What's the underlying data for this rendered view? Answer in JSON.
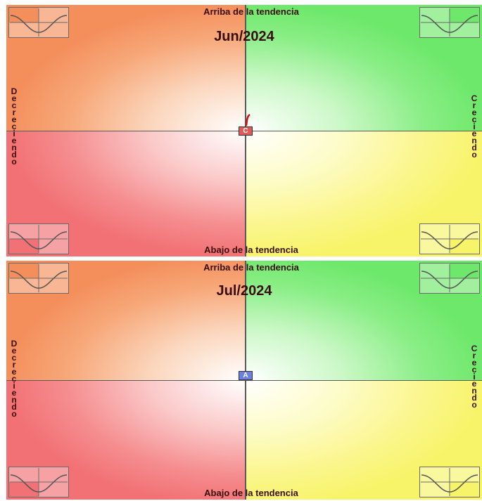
{
  "chart_data": [
    {
      "type": "scatter",
      "title": "Jun/2024",
      "labels": {
        "top": "Arriba de la tendencia",
        "bottom": "Abajo de la tendencia",
        "left": "Decreciendo",
        "right": "Creciendo"
      },
      "points": [
        {
          "label": "C",
          "x": 0,
          "y": 0,
          "color": "#e05a5a"
        }
      ],
      "quadrant_colors": {
        "top_left": "#f48f5c",
        "top_right": "#6ee86b",
        "bottom_left": "#f27174",
        "bottom_right": "#f8f46a"
      },
      "grid": false
    },
    {
      "type": "scatter",
      "title": "Jul/2024",
      "labels": {
        "top": "Arriba de la tendencia",
        "bottom": "Abajo de la tendencia",
        "left": "Decreciendo",
        "right": "Creciendo"
      },
      "points": [
        {
          "label": "A",
          "x": 0,
          "y": 0,
          "color": "#6b7fe0"
        }
      ],
      "quadrant_colors": {
        "top_left": "#f48f5c",
        "top_right": "#6ee86b",
        "bottom_left": "#f27174",
        "bottom_right": "#f8f46a"
      },
      "grid": false
    }
  ]
}
